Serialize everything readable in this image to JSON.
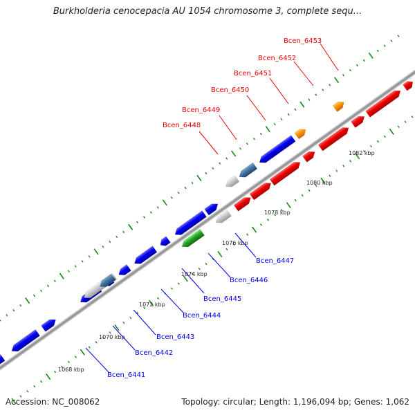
{
  "title": "Burkholderia cenocepacia AU 1054 chromosome 3, complete sequ...",
  "footer": {
    "accession": "Accession: NC_008062",
    "topology": "Topology: circular; Length: 1,196,094 bp; Genes: 1,062"
  },
  "colors": {
    "red": "#ee0000",
    "blue": "#0000ee",
    "orange": "#ff9900",
    "green": "#22aa22",
    "gray": "#cccccc",
    "steel": "#4477aa",
    "tick": "#118811",
    "backbone": "#888888"
  },
  "kbp_labels": [
    "1068 kbp",
    "1070 kbp",
    "1072 kbp",
    "1074 kbp",
    "1076 kbp",
    "1078 kbp",
    "1080 kbp",
    "1082 kbp"
  ],
  "genes_top": [
    "Bcen_6448",
    "Bcen_6449",
    "Bcen_6450",
    "Bcen_6451",
    "Bcen_6452",
    "Bcen_6453"
  ],
  "genes_bottom": [
    "Bcen_6441",
    "Bcen_6442",
    "Bcen_6443",
    "Bcen_6444",
    "Bcen_6445",
    "Bcen_6446",
    "Bcen_6447"
  ]
}
